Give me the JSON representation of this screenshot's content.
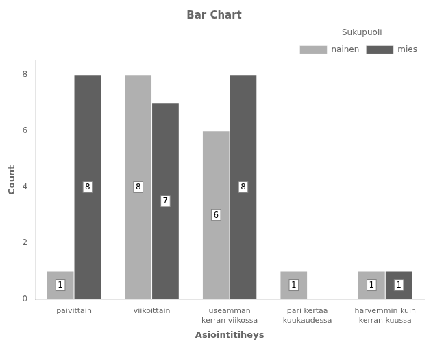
{
  "chart_data": {
    "type": "bar",
    "title": "Bar Chart",
    "xlabel": "Asiointitiheys",
    "ylabel": "Count",
    "categories": [
      "päivittäin",
      "viikoittain",
      "useamman\nkerran viikossa",
      "pari kertaa\nkuukaudessa",
      "harvemmin kuin\nkerran kuussa"
    ],
    "series": [
      {
        "name": "nainen",
        "color": "#b0b0b0",
        "values": [
          1,
          8,
          6,
          1,
          1
        ]
      },
      {
        "name": "mies",
        "color": "#606060",
        "values": [
          8,
          7,
          8,
          0,
          1
        ]
      }
    ],
    "ylim": [
      0,
      8.5
    ],
    "yticks": [
      0,
      2,
      4,
      6,
      8
    ],
    "grid": false,
    "legend": "upper right",
    "legend_title": "Sukupuoli",
    "data_labels": true
  }
}
